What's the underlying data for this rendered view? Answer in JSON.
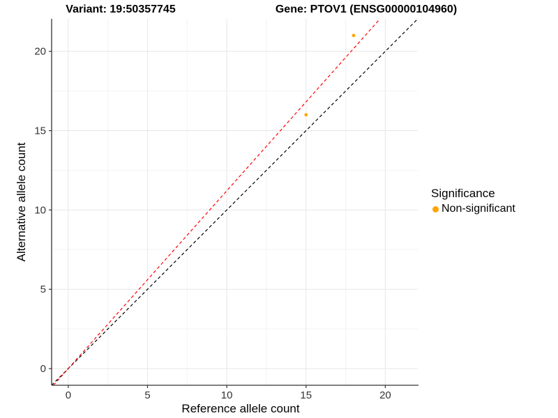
{
  "titles": {
    "variant": "Variant: 19:50357745",
    "gene": "Gene: PTOV1 (ENSG00000104960)"
  },
  "chart_data": {
    "type": "scatter",
    "xlabel": "Reference allele count",
    "ylabel": "Alternative allele count",
    "xlim": [
      -1.05,
      22.05
    ],
    "ylim": [
      -1.05,
      22.05
    ],
    "x_ticks": [
      0,
      5,
      10,
      15,
      20
    ],
    "y_ticks": [
      0,
      5,
      10,
      15,
      20
    ],
    "minor_grid_values": [
      2.5,
      7.5,
      12.5,
      17.5
    ],
    "grid": true,
    "series": [
      {
        "name": "Non-significant",
        "color": "#FFA500",
        "points": [
          {
            "x": 15,
            "y": 16
          },
          {
            "x": 18,
            "y": 21
          }
        ]
      }
    ],
    "lines": [
      {
        "name": "identity-line",
        "style": "dashed",
        "color": "#000000",
        "slope": 1.0,
        "intercept": 0
      },
      {
        "name": "ratio-line",
        "style": "dashed",
        "color": "#FF0000",
        "slope": 1.121,
        "intercept": 0
      }
    ],
    "legend": {
      "title": "Significance",
      "position": "right",
      "entries": [
        {
          "label": "Non-significant",
          "color": "#FFA500"
        }
      ]
    },
    "colors": {
      "major_grid": "#E6E6E6",
      "minor_grid": "#F3F3F3",
      "axis_line": "#333333",
      "tick_text": "#333333"
    }
  }
}
